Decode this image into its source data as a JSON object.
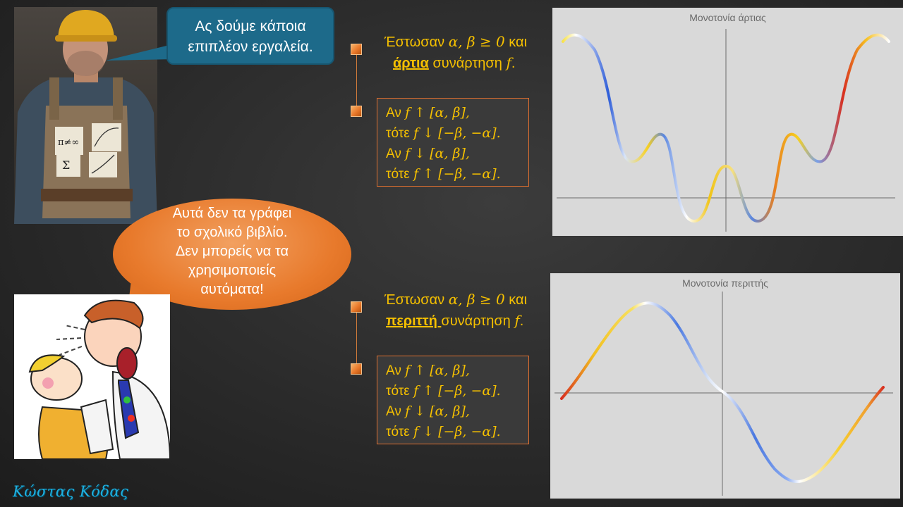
{
  "bubble_top": {
    "line1": "Ας δούμε κάποια",
    "line2": "επιπλέον εργαλεία."
  },
  "bubble_warning": {
    "line1": "Αυτά δεν τα γράφει",
    "line2": "το σχολικό βιβλίο.",
    "line3": "Δεν μπορείς να τα",
    "line4": "χρησιμοποιείς",
    "line5": "αυτόματα!"
  },
  "worker_notes": {
    "note1": "π≠∞",
    "note3": "Σ"
  },
  "signature": "Κώστας Κόδας",
  "even": {
    "statement": {
      "prefix": "Έστωσαν ",
      "cond": "α, β ≥ 0",
      "suffix": " και",
      "keyword": "άρτια",
      "rest": "  συνάρτηση ",
      "f": "f",
      "end": "."
    },
    "rules": [
      {
        "pre": "Αν ",
        "math": "f ↑ [α, β],"
      },
      {
        "pre": "τότε ",
        "math": "f ↓ [−β, −α]."
      },
      {
        "pre": "Αν ",
        "math": "f ↓ [α, β],"
      },
      {
        "pre": "τότε ",
        "math": "f ↑ [−β, −α]."
      }
    ],
    "graph_title": "Μονοτονία άρτιας"
  },
  "odd": {
    "statement": {
      "prefix": "Έστωσαν ",
      "cond": "α, β ≥ 0",
      "suffix": " και",
      "keyword": "περιττή ",
      "rest": "συνάρτηση ",
      "f": "f",
      "end": "."
    },
    "rules": [
      {
        "pre": "Αν ",
        "math": "f ↑ [α, β],"
      },
      {
        "pre": "τότε ",
        "math": "f ↑ [−β, −α]."
      },
      {
        "pre": "Αν ",
        "math": "f ↓ [α, β],"
      },
      {
        "pre": "τότε ",
        "math": "f ↓ [−β, −α]."
      }
    ],
    "graph_title": "Μονοτονία περιττής"
  },
  "colors": {
    "accent": "#f5c000",
    "bullet": "#e8782a",
    "bubble_blue": "#1d6a8a",
    "bubble_orange": "#e87a2c",
    "panel": "#d9d9d9"
  }
}
